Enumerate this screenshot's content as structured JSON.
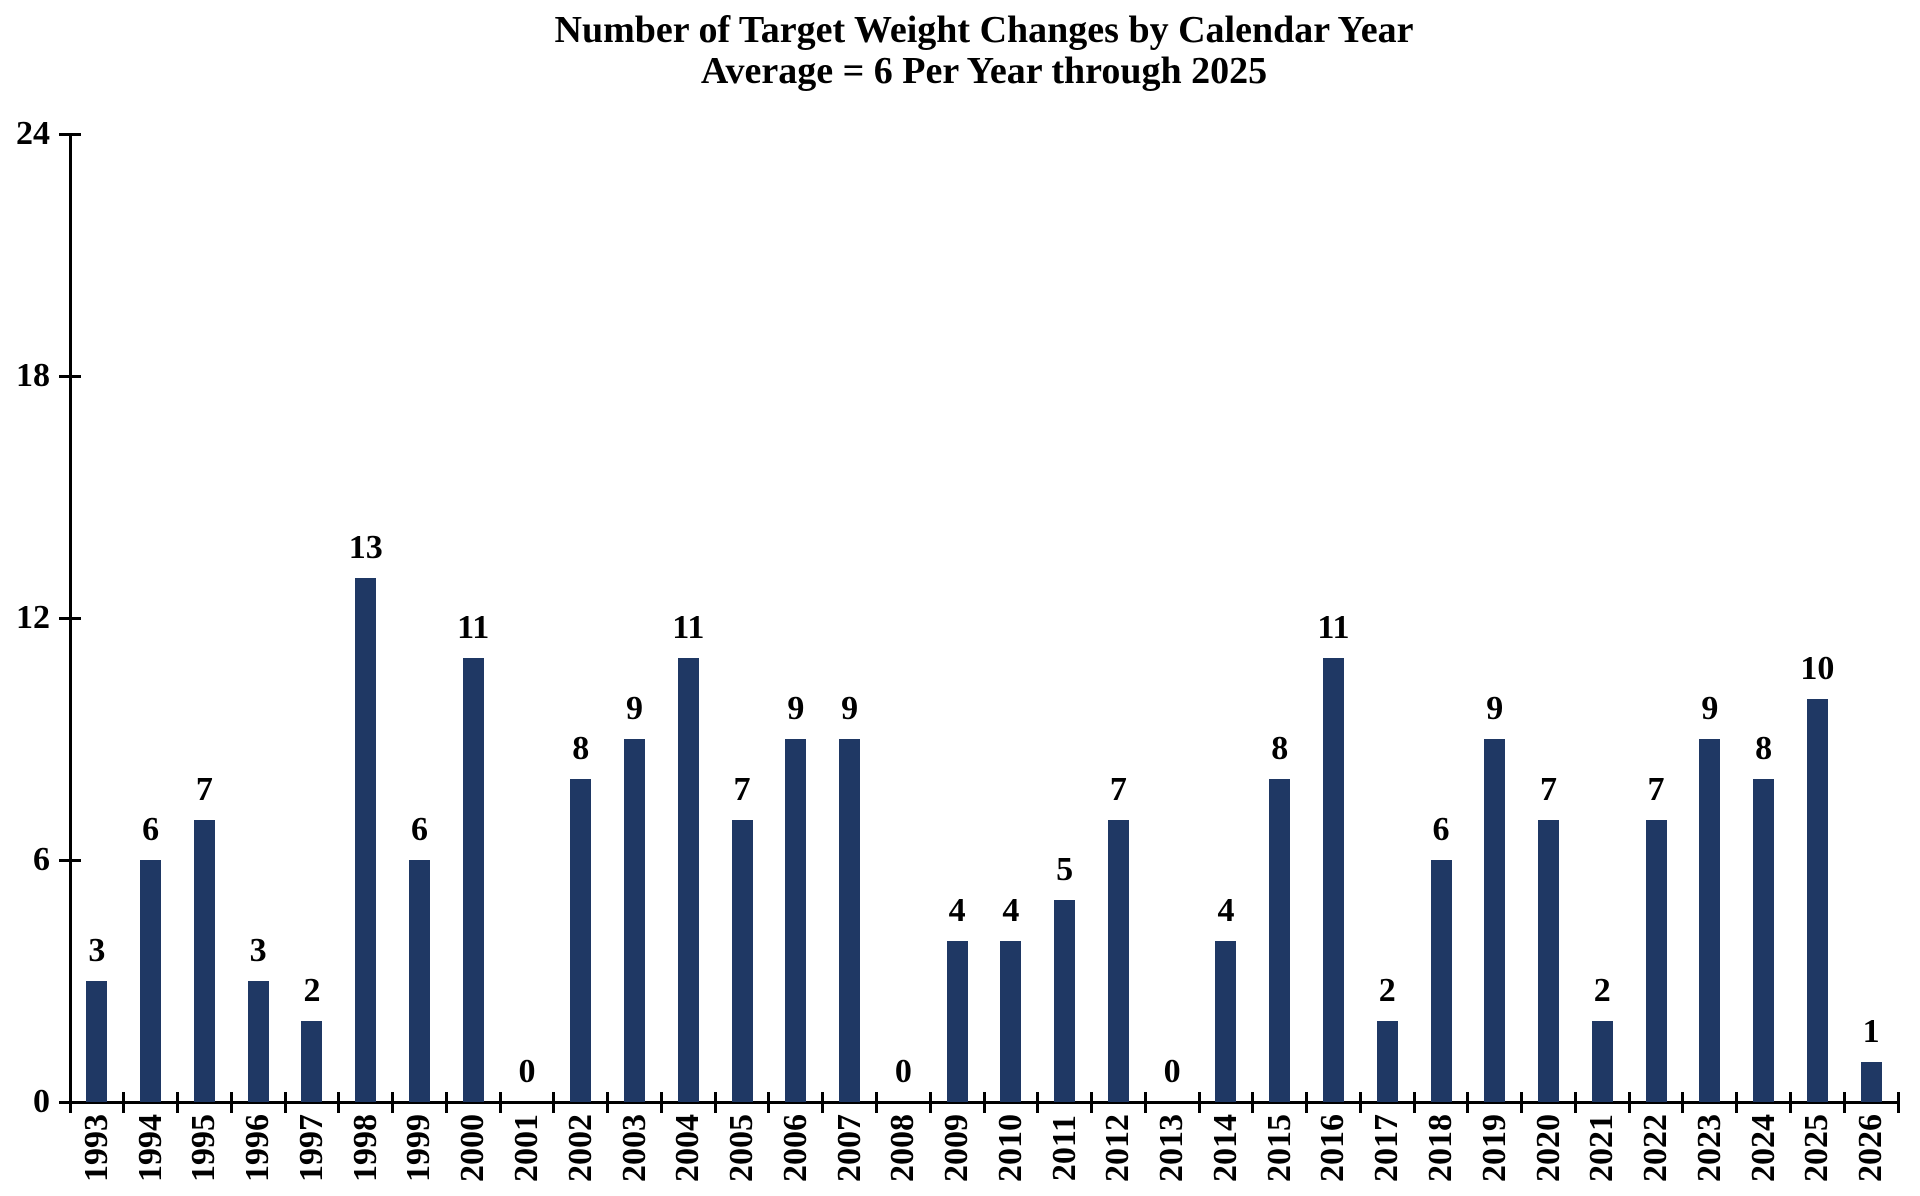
{
  "colors": {
    "bar": "#1F3864",
    "axis": "#000000",
    "text": "#000000",
    "background": "#FFFFFF"
  },
  "chart_data": {
    "type": "bar",
    "title": "Number of Target Weight Changes by Calendar Year",
    "subtitle": "Average = 6 Per Year through 2025",
    "categories": [
      "1993",
      "1994",
      "1995",
      "1996",
      "1997",
      "1998",
      "1999",
      "2000",
      "2001",
      "2002",
      "2003",
      "2004",
      "2005",
      "2006",
      "2007",
      "2008",
      "2009",
      "2010",
      "2011",
      "2012",
      "2013",
      "2014",
      "2015",
      "2016",
      "2017",
      "2018",
      "2019",
      "2020",
      "2021",
      "2022",
      "2023",
      "2024",
      "2025",
      "2026"
    ],
    "values": [
      3,
      6,
      7,
      3,
      2,
      13,
      6,
      11,
      0,
      8,
      9,
      11,
      7,
      9,
      9,
      0,
      4,
      4,
      5,
      7,
      0,
      4,
      8,
      11,
      2,
      6,
      9,
      7,
      2,
      7,
      9,
      8,
      10,
      1
    ],
    "xlabel": "",
    "ylabel": "",
    "ylim": [
      0,
      24
    ],
    "yticks": [
      0,
      6,
      12,
      18,
      24
    ],
    "grid": false,
    "legend_position": "none",
    "bar_value_labels": true,
    "x_tick_label_rotation_deg": 90
  }
}
